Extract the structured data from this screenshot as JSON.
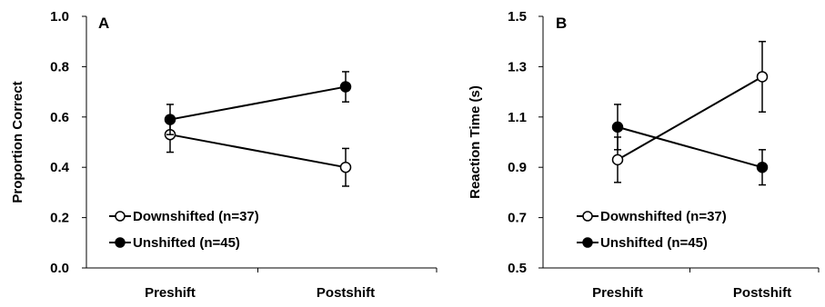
{
  "chart_data": [
    {
      "type": "line",
      "panel": "A",
      "ylabel": "Proportion Correct",
      "xlabel": "",
      "categories": [
        "Preshift",
        "Postshift"
      ],
      "ylim": [
        0.0,
        1.0
      ],
      "yticks": [
        "0.0",
        "0.2",
        "0.4",
        "0.6",
        "0.8",
        "1.0"
      ],
      "series": [
        {
          "name": "Downshifted (n=37)",
          "marker": "open-circle",
          "values": [
            0.53,
            0.4
          ],
          "error": [
            0.07,
            0.075
          ]
        },
        {
          "name": "Unshifted (n=45)",
          "marker": "filled-circle",
          "values": [
            0.59,
            0.72
          ],
          "error": [
            0.06,
            0.06
          ]
        }
      ],
      "legend": "bottom-left"
    },
    {
      "type": "line",
      "panel": "B",
      "ylabel": "Reaction Time (s)",
      "xlabel": "",
      "categories": [
        "Preshift",
        "Postshift"
      ],
      "ylim": [
        0.5,
        1.5
      ],
      "yticks": [
        "0.5",
        "0.7",
        "0.9",
        "1.1",
        "1.3",
        "1.5"
      ],
      "series": [
        {
          "name": "Downshifted (n=37)",
          "marker": "open-circle",
          "values": [
            0.93,
            1.26
          ],
          "error": [
            0.09,
            0.14
          ]
        },
        {
          "name": "Unshifted (n=45)",
          "marker": "filled-circle",
          "values": [
            1.06,
            0.9
          ],
          "error": [
            0.09,
            0.07
          ]
        }
      ],
      "legend": "bottom-left"
    }
  ]
}
